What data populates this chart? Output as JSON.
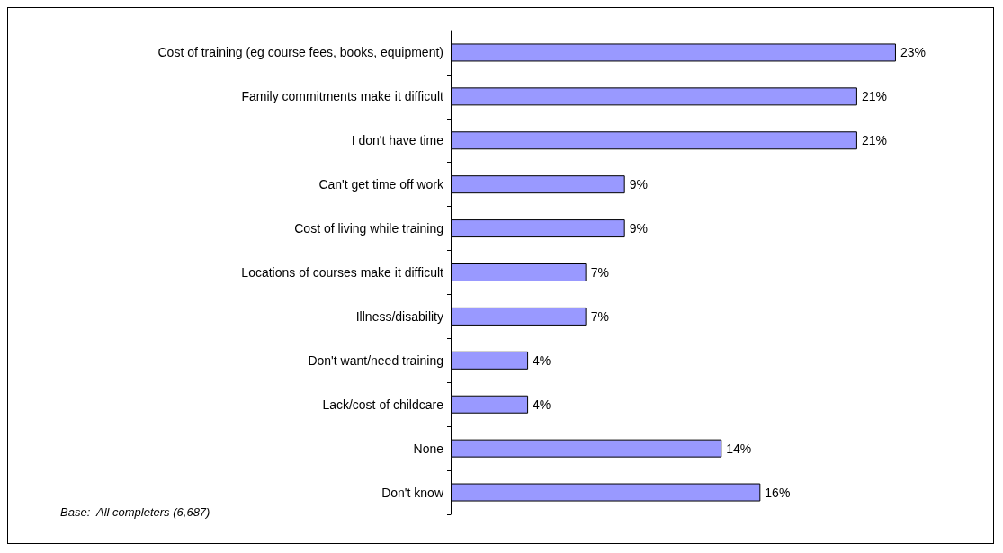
{
  "chart_data": {
    "type": "bar",
    "orientation": "horizontal",
    "categories": [
      "Cost of training (eg course fees, books, equipment)",
      "Family commitments make it difficult",
      "I don't have time",
      "Can't get time off work",
      "Cost of living while training",
      "Locations of courses make it difficult",
      "Illness/disability",
      "Don't want/need training",
      "Lack/cost of childcare",
      "None",
      "Don't know"
    ],
    "values": [
      23,
      21,
      21,
      9,
      9,
      7,
      7,
      4,
      4,
      14,
      16
    ],
    "value_labels": [
      "23%",
      "21%",
      "21%",
      "9%",
      "9%",
      "7%",
      "7%",
      "4%",
      "4%",
      "14%",
      "16%"
    ],
    "color": "#9999ff",
    "annotations": [
      "Base:  All completers (6,687)"
    ]
  }
}
